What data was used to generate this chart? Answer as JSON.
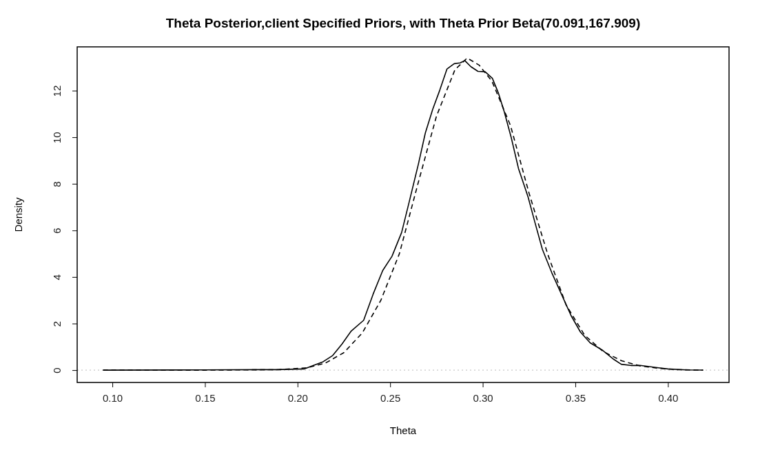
{
  "chart_data": {
    "type": "line",
    "title": "Theta Posterior,client Specified Priors, with Theta Prior Beta(70.091,167.909)",
    "xlabel": "Theta",
    "ylabel": "Density",
    "xlim": [
      0.081,
      0.433
    ],
    "xticks": [
      {
        "value": 0.1,
        "label": "0.10"
      },
      {
        "value": 0.15,
        "label": "0.15"
      },
      {
        "value": 0.2,
        "label": "0.20"
      },
      {
        "value": 0.25,
        "label": "0.25"
      },
      {
        "value": 0.3,
        "label": "0.30"
      },
      {
        "value": 0.35,
        "label": "0.35"
      },
      {
        "value": 0.4,
        "label": "0.40"
      }
    ],
    "ylim": [
      -0.53,
      13.88
    ],
    "yticks": [
      0,
      2,
      4,
      6,
      8,
      10,
      12
    ],
    "grid": false,
    "ref_lines": [
      {
        "axis": "y",
        "value": 0,
        "color": "#bbbbbb",
        "line_style": "dotted"
      }
    ],
    "series": [
      {
        "color": "#000000",
        "line_style": "solid",
        "x": [
          0.095,
          0.15,
          0.18,
          0.188,
          0.2035,
          0.2086,
          0.2138,
          0.219,
          0.224,
          0.229,
          0.2357,
          0.2408,
          0.246,
          0.251,
          0.2562,
          0.26,
          0.2653,
          0.269,
          0.273,
          0.2768,
          0.2807,
          0.2846,
          0.2878,
          0.2903,
          0.2936,
          0.2974,
          0.3013,
          0.3052,
          0.3084,
          0.3116,
          0.3154,
          0.3193,
          0.3245,
          0.3283,
          0.3322,
          0.3373,
          0.3425,
          0.3477,
          0.3528,
          0.358,
          0.3644,
          0.3708,
          0.3748,
          0.38,
          0.385,
          0.39,
          0.395,
          0.4,
          0.41,
          0.419
        ],
        "values": [
          0,
          0.01,
          0.02,
          0.02,
          0.05,
          0.2,
          0.36,
          0.63,
          1.12,
          1.68,
          2.14,
          3.26,
          4.28,
          4.89,
          5.91,
          7.13,
          8.86,
          10.18,
          11.2,
          12.02,
          12.93,
          13.16,
          13.19,
          13.29,
          13.03,
          12.83,
          12.81,
          12.53,
          11.91,
          11.1,
          9.98,
          8.66,
          7.43,
          6.31,
          5.19,
          4.18,
          3.26,
          2.34,
          1.63,
          1.17,
          0.87,
          0.46,
          0.25,
          0.2,
          0.2,
          0.15,
          0.1,
          0.05,
          0.01,
          0
        ]
      },
      {
        "color": "#000000",
        "line_style": "dashed",
        "x": [
          0.095,
          0.15,
          0.19,
          0.205,
          0.215,
          0.225,
          0.235,
          0.245,
          0.255,
          0.265,
          0.275,
          0.285,
          0.2916,
          0.298,
          0.305,
          0.315,
          0.325,
          0.335,
          0.345,
          0.355,
          0.365,
          0.375,
          0.385,
          0.395,
          0.405,
          0.419
        ],
        "values": [
          0,
          0,
          0.02,
          0.1,
          0.3,
          0.75,
          1.6,
          3.0,
          5.0,
          8.0,
          10.9,
          12.9,
          13.4,
          13.1,
          12.4,
          10.5,
          7.6,
          5.0,
          2.8,
          1.5,
          0.8,
          0.4,
          0.18,
          0.08,
          0.02,
          0
        ]
      }
    ]
  }
}
